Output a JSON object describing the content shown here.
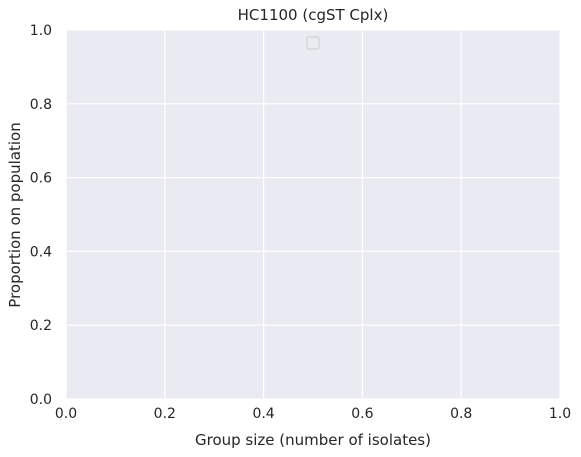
{
  "chart_data": {
    "type": "line",
    "title": "HC1100 (cgST Cplx)",
    "xlabel": "Group size (number of isolates)",
    "ylabel": "Proportion on population",
    "xlim": [
      0.0,
      1.0
    ],
    "ylim": [
      0.0,
      1.0
    ],
    "x_ticks": [
      "0.0",
      "0.2",
      "0.4",
      "0.6",
      "0.8",
      "1.0"
    ],
    "y_ticks": [
      "0.0",
      "0.2",
      "0.4",
      "0.6",
      "0.8",
      "1.0"
    ],
    "x_tick_values": [
      0.0,
      0.2,
      0.4,
      0.6,
      0.8,
      1.0
    ],
    "y_tick_values": [
      0.0,
      0.2,
      0.4,
      0.6,
      0.8,
      1.0
    ],
    "series": [],
    "grid": true,
    "legend": {
      "placement": "top-center",
      "entries": []
    },
    "colors": {
      "plot_background": "#EAEAF2",
      "grid": "#FFFFFF",
      "text": "#262626"
    }
  }
}
